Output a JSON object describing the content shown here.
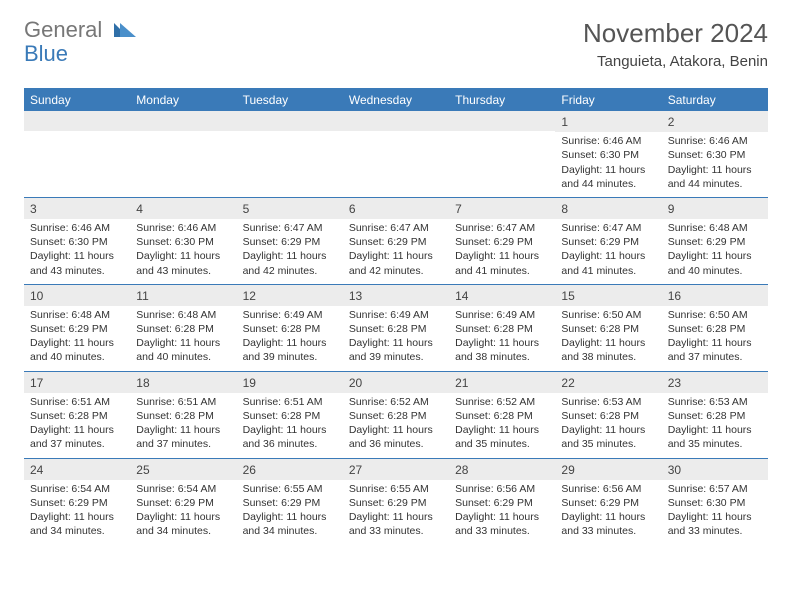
{
  "logo": {
    "line1": "General",
    "line2": "Blue"
  },
  "title": "November 2024",
  "location": "Tanguieta, Atakora, Benin",
  "colors": {
    "header_bg": "#3a7ab8",
    "header_fg": "#ffffff",
    "daynum_bg": "#ececec",
    "row_border": "#3a7ab8",
    "logo_gray": "#777777",
    "logo_blue": "#3a7ab8"
  },
  "day_headers": [
    "Sunday",
    "Monday",
    "Tuesday",
    "Wednesday",
    "Thursday",
    "Friday",
    "Saturday"
  ],
  "weeks": [
    [
      {
        "n": "",
        "lines": [
          "",
          "",
          "",
          ""
        ]
      },
      {
        "n": "",
        "lines": [
          "",
          "",
          "",
          ""
        ]
      },
      {
        "n": "",
        "lines": [
          "",
          "",
          "",
          ""
        ]
      },
      {
        "n": "",
        "lines": [
          "",
          "",
          "",
          ""
        ]
      },
      {
        "n": "",
        "lines": [
          "",
          "",
          "",
          ""
        ]
      },
      {
        "n": "1",
        "lines": [
          "Sunrise: 6:46 AM",
          "Sunset: 6:30 PM",
          "Daylight: 11 hours",
          "and 44 minutes."
        ]
      },
      {
        "n": "2",
        "lines": [
          "Sunrise: 6:46 AM",
          "Sunset: 6:30 PM",
          "Daylight: 11 hours",
          "and 44 minutes."
        ]
      }
    ],
    [
      {
        "n": "3",
        "lines": [
          "Sunrise: 6:46 AM",
          "Sunset: 6:30 PM",
          "Daylight: 11 hours",
          "and 43 minutes."
        ]
      },
      {
        "n": "4",
        "lines": [
          "Sunrise: 6:46 AM",
          "Sunset: 6:30 PM",
          "Daylight: 11 hours",
          "and 43 minutes."
        ]
      },
      {
        "n": "5",
        "lines": [
          "Sunrise: 6:47 AM",
          "Sunset: 6:29 PM",
          "Daylight: 11 hours",
          "and 42 minutes."
        ]
      },
      {
        "n": "6",
        "lines": [
          "Sunrise: 6:47 AM",
          "Sunset: 6:29 PM",
          "Daylight: 11 hours",
          "and 42 minutes."
        ]
      },
      {
        "n": "7",
        "lines": [
          "Sunrise: 6:47 AM",
          "Sunset: 6:29 PM",
          "Daylight: 11 hours",
          "and 41 minutes."
        ]
      },
      {
        "n": "8",
        "lines": [
          "Sunrise: 6:47 AM",
          "Sunset: 6:29 PM",
          "Daylight: 11 hours",
          "and 41 minutes."
        ]
      },
      {
        "n": "9",
        "lines": [
          "Sunrise: 6:48 AM",
          "Sunset: 6:29 PM",
          "Daylight: 11 hours",
          "and 40 minutes."
        ]
      }
    ],
    [
      {
        "n": "10",
        "lines": [
          "Sunrise: 6:48 AM",
          "Sunset: 6:29 PM",
          "Daylight: 11 hours",
          "and 40 minutes."
        ]
      },
      {
        "n": "11",
        "lines": [
          "Sunrise: 6:48 AM",
          "Sunset: 6:28 PM",
          "Daylight: 11 hours",
          "and 40 minutes."
        ]
      },
      {
        "n": "12",
        "lines": [
          "Sunrise: 6:49 AM",
          "Sunset: 6:28 PM",
          "Daylight: 11 hours",
          "and 39 minutes."
        ]
      },
      {
        "n": "13",
        "lines": [
          "Sunrise: 6:49 AM",
          "Sunset: 6:28 PM",
          "Daylight: 11 hours",
          "and 39 minutes."
        ]
      },
      {
        "n": "14",
        "lines": [
          "Sunrise: 6:49 AM",
          "Sunset: 6:28 PM",
          "Daylight: 11 hours",
          "and 38 minutes."
        ]
      },
      {
        "n": "15",
        "lines": [
          "Sunrise: 6:50 AM",
          "Sunset: 6:28 PM",
          "Daylight: 11 hours",
          "and 38 minutes."
        ]
      },
      {
        "n": "16",
        "lines": [
          "Sunrise: 6:50 AM",
          "Sunset: 6:28 PM",
          "Daylight: 11 hours",
          "and 37 minutes."
        ]
      }
    ],
    [
      {
        "n": "17",
        "lines": [
          "Sunrise: 6:51 AM",
          "Sunset: 6:28 PM",
          "Daylight: 11 hours",
          "and 37 minutes."
        ]
      },
      {
        "n": "18",
        "lines": [
          "Sunrise: 6:51 AM",
          "Sunset: 6:28 PM",
          "Daylight: 11 hours",
          "and 37 minutes."
        ]
      },
      {
        "n": "19",
        "lines": [
          "Sunrise: 6:51 AM",
          "Sunset: 6:28 PM",
          "Daylight: 11 hours",
          "and 36 minutes."
        ]
      },
      {
        "n": "20",
        "lines": [
          "Sunrise: 6:52 AM",
          "Sunset: 6:28 PM",
          "Daylight: 11 hours",
          "and 36 minutes."
        ]
      },
      {
        "n": "21",
        "lines": [
          "Sunrise: 6:52 AM",
          "Sunset: 6:28 PM",
          "Daylight: 11 hours",
          "and 35 minutes."
        ]
      },
      {
        "n": "22",
        "lines": [
          "Sunrise: 6:53 AM",
          "Sunset: 6:28 PM",
          "Daylight: 11 hours",
          "and 35 minutes."
        ]
      },
      {
        "n": "23",
        "lines": [
          "Sunrise: 6:53 AM",
          "Sunset: 6:28 PM",
          "Daylight: 11 hours",
          "and 35 minutes."
        ]
      }
    ],
    [
      {
        "n": "24",
        "lines": [
          "Sunrise: 6:54 AM",
          "Sunset: 6:29 PM",
          "Daylight: 11 hours",
          "and 34 minutes."
        ]
      },
      {
        "n": "25",
        "lines": [
          "Sunrise: 6:54 AM",
          "Sunset: 6:29 PM",
          "Daylight: 11 hours",
          "and 34 minutes."
        ]
      },
      {
        "n": "26",
        "lines": [
          "Sunrise: 6:55 AM",
          "Sunset: 6:29 PM",
          "Daylight: 11 hours",
          "and 34 minutes."
        ]
      },
      {
        "n": "27",
        "lines": [
          "Sunrise: 6:55 AM",
          "Sunset: 6:29 PM",
          "Daylight: 11 hours",
          "and 33 minutes."
        ]
      },
      {
        "n": "28",
        "lines": [
          "Sunrise: 6:56 AM",
          "Sunset: 6:29 PM",
          "Daylight: 11 hours",
          "and 33 minutes."
        ]
      },
      {
        "n": "29",
        "lines": [
          "Sunrise: 6:56 AM",
          "Sunset: 6:29 PM",
          "Daylight: 11 hours",
          "and 33 minutes."
        ]
      },
      {
        "n": "30",
        "lines": [
          "Sunrise: 6:57 AM",
          "Sunset: 6:30 PM",
          "Daylight: 11 hours",
          "and 33 minutes."
        ]
      }
    ]
  ]
}
